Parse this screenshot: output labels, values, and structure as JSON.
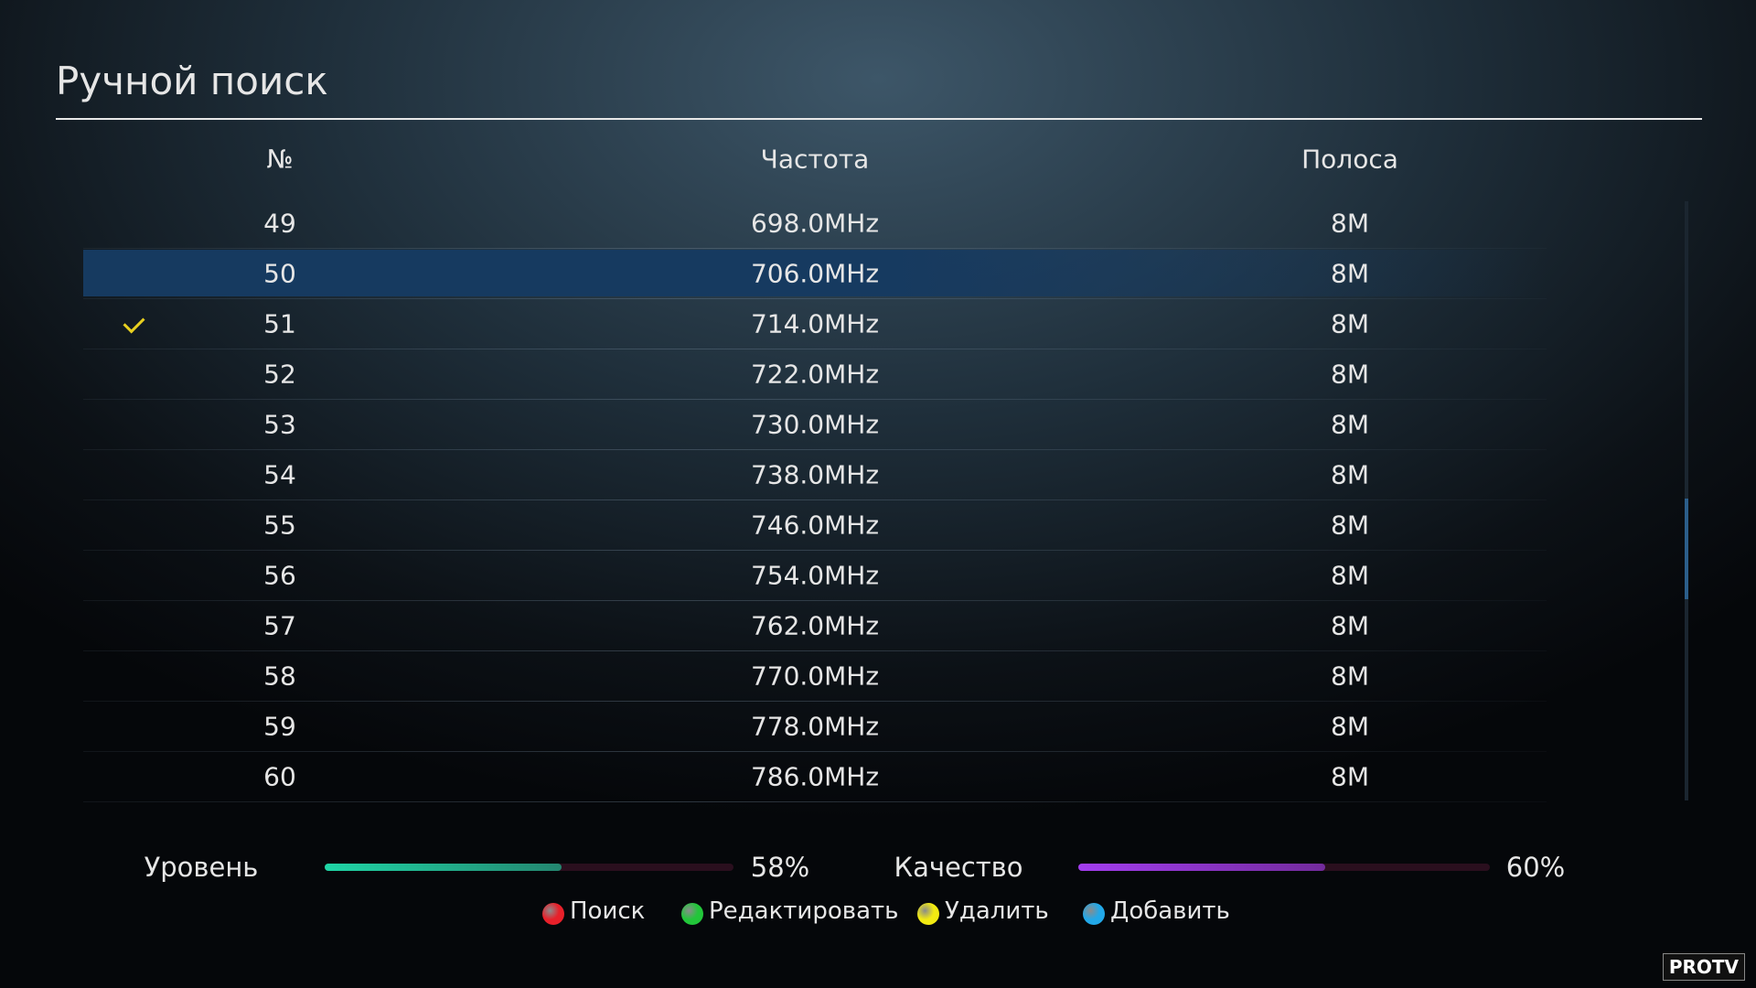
{
  "header": {
    "title": "Ручной поиск"
  },
  "table": {
    "columns": [
      "№",
      "Частота",
      "Полоса"
    ],
    "rows": [
      [
        "49",
        "698.0MHz",
        "8M"
      ],
      [
        "50",
        "706.0MHz",
        "8M"
      ],
      [
        "51",
        "714.0MHz",
        "8M"
      ],
      [
        "52",
        "722.0MHz",
        "8M"
      ],
      [
        "53",
        "730.0MHz",
        "8M"
      ],
      [
        "54",
        "738.0MHz",
        "8M"
      ],
      [
        "55",
        "746.0MHz",
        "8M"
      ],
      [
        "56",
        "754.0MHz",
        "8M"
      ],
      [
        "57",
        "762.0MHz",
        "8M"
      ],
      [
        "58",
        "770.0MHz",
        "8M"
      ],
      [
        "59",
        "778.0MHz",
        "8M"
      ],
      [
        "60",
        "786.0MHz",
        "8M"
      ]
    ],
    "selected_row": 1,
    "checked_rows": [
      2
    ]
  },
  "signal": [
    {
      "label": "Уровень",
      "value": 58,
      "value_label": "58%",
      "color": "#1fd6a6"
    },
    {
      "label": "Качество",
      "value": 60,
      "value_label": "60%",
      "color": "#a33df0"
    }
  ],
  "buttons": [
    {
      "label": "Поиск",
      "color": "#e8202a"
    },
    {
      "label": "Редактировать",
      "color": "#22c63a"
    },
    {
      "label": "Удалить",
      "color": "#f2ea12"
    },
    {
      "label": "Добавить",
      "color": "#22a8e8"
    }
  ],
  "watermark": "PROTV"
}
